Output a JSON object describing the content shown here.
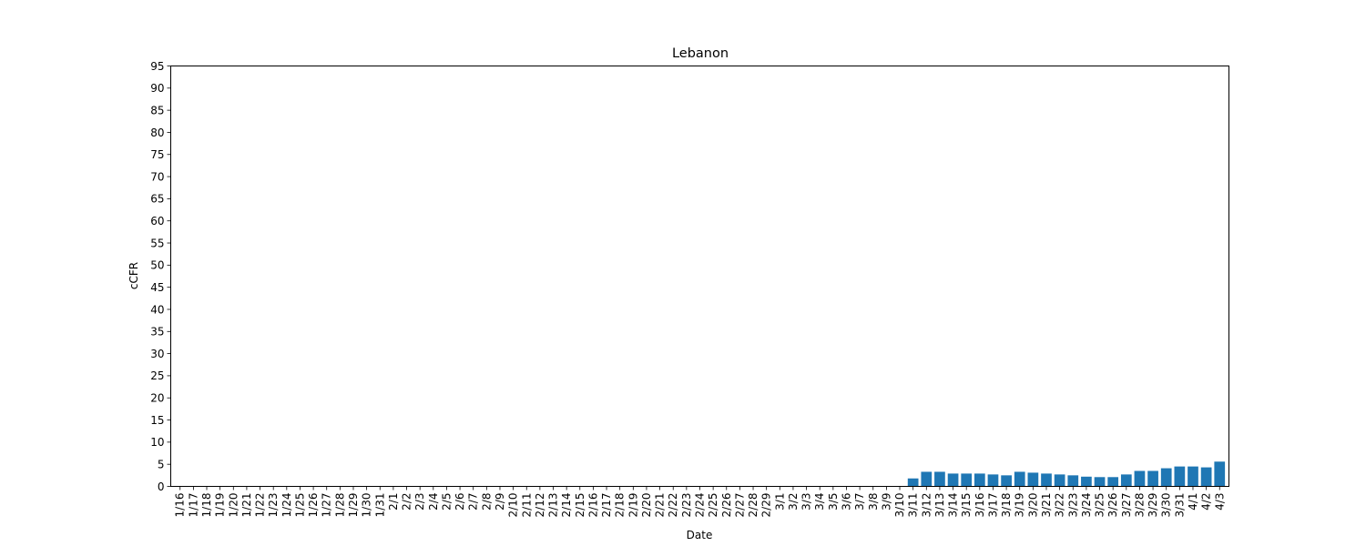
{
  "chart_data": {
    "type": "bar",
    "title": "Lebanon",
    "xlabel": "Date",
    "ylabel": "cCFR",
    "ylim": [
      0,
      95
    ],
    "yticks": [
      0,
      5,
      10,
      15,
      20,
      25,
      30,
      35,
      40,
      45,
      50,
      55,
      60,
      65,
      70,
      75,
      80,
      85,
      90,
      95
    ],
    "bar_color": "#1f77b4",
    "grid": false,
    "categories": [
      "1/16",
      "1/17",
      "1/18",
      "1/19",
      "1/20",
      "1/21",
      "1/22",
      "1/23",
      "1/24",
      "1/25",
      "1/26",
      "1/27",
      "1/28",
      "1/29",
      "1/30",
      "1/31",
      "2/1",
      "2/2",
      "2/3",
      "2/4",
      "2/5",
      "2/6",
      "2/7",
      "2/8",
      "2/9",
      "2/10",
      "2/11",
      "2/12",
      "2/13",
      "2/14",
      "2/15",
      "2/16",
      "2/17",
      "2/18",
      "2/19",
      "2/20",
      "2/21",
      "2/22",
      "2/23",
      "2/24",
      "2/25",
      "2/26",
      "2/27",
      "2/28",
      "2/29",
      "3/1",
      "3/2",
      "3/3",
      "3/4",
      "3/5",
      "3/6",
      "3/7",
      "3/8",
      "3/9",
      "3/10",
      "3/11",
      "3/12",
      "3/13",
      "3/14",
      "3/15",
      "3/16",
      "3/17",
      "3/18",
      "3/19",
      "3/20",
      "3/21",
      "3/22",
      "3/23",
      "3/24",
      "3/25",
      "3/26",
      "3/27",
      "3/28",
      "3/29",
      "3/30",
      "3/31",
      "4/1",
      "4/2",
      "4/3"
    ],
    "values": [
      0,
      0,
      0,
      0,
      0,
      0,
      0,
      0,
      0,
      0,
      0,
      0,
      0,
      0,
      0,
      0,
      0,
      0,
      0,
      0,
      0,
      0,
      0,
      0,
      0,
      0,
      0,
      0,
      0,
      0,
      0,
      0,
      0,
      0,
      0,
      0,
      0,
      0,
      0,
      0,
      0,
      0,
      0,
      0,
      0,
      0,
      0,
      0,
      0,
      0,
      0,
      0,
      0,
      0,
      0,
      1.8,
      3.3,
      3.3,
      2.9,
      2.9,
      2.9,
      2.7,
      2.5,
      3.3,
      3.1,
      2.9,
      2.7,
      2.5,
      2.2,
      2.1,
      2.1,
      2.7,
      3.5,
      3.5,
      4.1,
      4.5,
      4.5,
      4.3,
      5.6
    ]
  }
}
